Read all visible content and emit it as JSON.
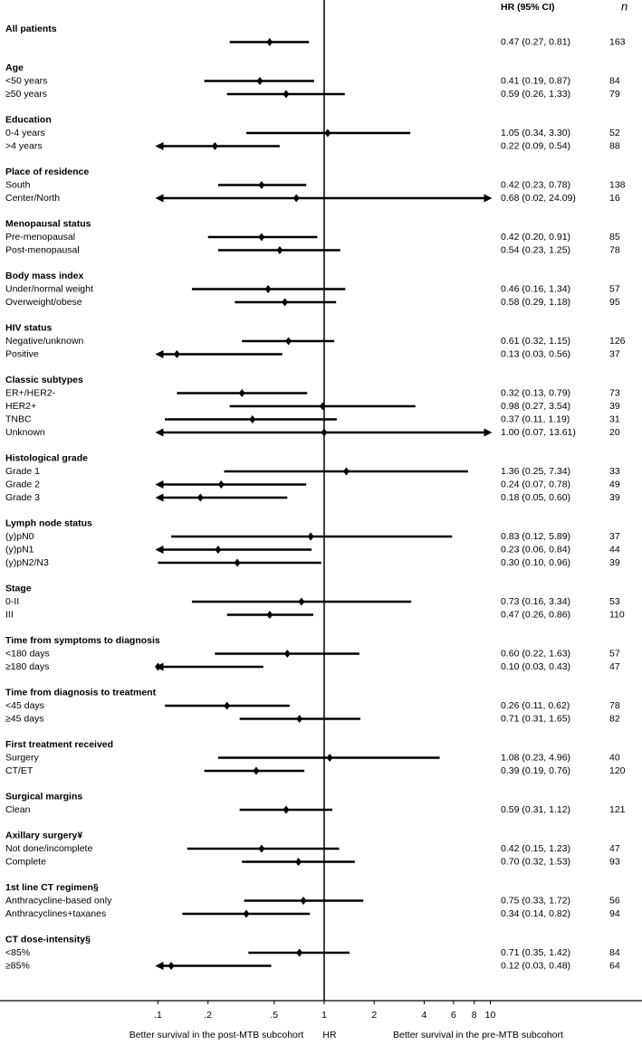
{
  "chart_data": {
    "type": "forest",
    "header_ci": "HR (95% CI)",
    "header_n": "n",
    "x_label_left": "Better survival in the post-MTB subcohort",
    "x_label_center": "HR",
    "x_label_right": "Better survival in the pre-MTB subcohort",
    "log_scale": true,
    "xlim": [
      0.1,
      10
    ],
    "xticks": [
      {
        "value": 0.1,
        "label": ".1"
      },
      {
        "value": 0.2,
        "label": ".2"
      },
      {
        "value": 0.5,
        "label": ".5"
      },
      1,
      2,
      4,
      6,
      8,
      10
    ],
    "reference": 1,
    "color": "#000000",
    "groups": [
      {
        "title": "All patients",
        "rows": [
          {
            "label": null,
            "hr": 0.47,
            "lower": 0.27,
            "upper": 0.81,
            "hr_label": "0.47 (0.27, 0.81)",
            "n": 163
          }
        ]
      },
      {
        "title": "Age",
        "rows": [
          {
            "label": "<50 years",
            "hr": 0.41,
            "lower": 0.19,
            "upper": 0.87,
            "hr_label": "0.41 (0.19, 0.87)",
            "n": 84
          },
          {
            "label": "≥50 years",
            "hr": 0.59,
            "lower": 0.26,
            "upper": 1.33,
            "hr_label": "0.59 (0.26, 1.33)",
            "n": 79
          }
        ]
      },
      {
        "title": "Education",
        "rows": [
          {
            "label": "0-4 years",
            "hr": 1.05,
            "lower": 0.34,
            "upper": 3.3,
            "hr_label": "1.05 (0.34, 3.30)",
            "n": 52
          },
          {
            "label": ">4 years",
            "hr": 0.22,
            "lower": 0.09,
            "upper": 0.54,
            "hr_label": "0.22 (0.09, 0.54)",
            "n": 88
          }
        ]
      },
      {
        "title": "Place of residence",
        "rows": [
          {
            "label": "South",
            "hr": 0.42,
            "lower": 0.23,
            "upper": 0.78,
            "hr_label": "0.42 (0.23, 0.78)",
            "n": 138
          },
          {
            "label": "Center/North",
            "hr": 0.68,
            "lower": 0.02,
            "upper": 24.09,
            "hr_label": "0.68 (0.02, 24.09)",
            "n": 16
          }
        ]
      },
      {
        "title": "Menopausal status",
        "rows": [
          {
            "label": "Pre-menopausal",
            "hr": 0.42,
            "lower": 0.2,
            "upper": 0.91,
            "hr_label": "0.42 (0.20, 0.91)",
            "n": 85
          },
          {
            "label": "Post-menopausal",
            "hr": 0.54,
            "lower": 0.23,
            "upper": 1.25,
            "hr_label": "0.54 (0.23, 1.25)",
            "n": 78
          }
        ]
      },
      {
        "title": "Body mass index",
        "rows": [
          {
            "label": "Under/normal weight",
            "hr": 0.46,
            "lower": 0.16,
            "upper": 1.34,
            "hr_label": "0.46 (0.16, 1.34)",
            "n": 57
          },
          {
            "label": "Overweight/obese",
            "hr": 0.58,
            "lower": 0.29,
            "upper": 1.18,
            "hr_label": "0.58 (0.29, 1.18)",
            "n": 95
          }
        ]
      },
      {
        "title": "HIV status",
        "rows": [
          {
            "label": "Negative/unknown",
            "hr": 0.61,
            "lower": 0.32,
            "upper": 1.15,
            "hr_label": "0.61 (0.32, 1.15)",
            "n": 126
          },
          {
            "label": "Positive",
            "hr": 0.13,
            "lower": 0.03,
            "upper": 0.56,
            "hr_label": "0.13 (0.03, 0.56)",
            "n": 37
          }
        ]
      },
      {
        "title": "Classic subtypes",
        "rows": [
          {
            "label": "ER+/HER2-",
            "hr": 0.32,
            "lower": 0.13,
            "upper": 0.79,
            "hr_label": "0.32 (0.13, 0.79)",
            "n": 73
          },
          {
            "label": "HER2+",
            "hr": 0.98,
            "lower": 0.27,
            "upper": 3.54,
            "hr_label": "0.98 (0.27, 3.54)",
            "n": 39
          },
          {
            "label": "TNBC",
            "hr": 0.37,
            "lower": 0.11,
            "upper": 1.19,
            "hr_label": "0.37 (0.11, 1.19)",
            "n": 31
          },
          {
            "label": "Unknown",
            "hr": 1.0,
            "lower": 0.07,
            "upper": 13.61,
            "hr_label": "1.00 (0.07, 13.61)",
            "n": 20
          }
        ]
      },
      {
        "title": "Histological grade",
        "rows": [
          {
            "label": "Grade 1",
            "hr": 1.36,
            "lower": 0.25,
            "upper": 7.34,
            "hr_label": "1.36 (0.25, 7.34)",
            "n": 33
          },
          {
            "label": "Grade 2",
            "hr": 0.24,
            "lower": 0.07,
            "upper": 0.78,
            "hr_label": "0.24 (0.07, 0.78)",
            "n": 49
          },
          {
            "label": "Grade 3",
            "hr": 0.18,
            "lower": 0.05,
            "upper": 0.6,
            "hr_label": "0.18 (0.05, 0.60)",
            "n": 39
          }
        ]
      },
      {
        "title": "Lymph node status",
        "rows": [
          {
            "label": "(y)pN0",
            "hr": 0.83,
            "lower": 0.12,
            "upper": 5.89,
            "hr_label": "0.83 (0.12, 5.89)",
            "n": 37
          },
          {
            "label": "(y)pN1",
            "hr": 0.23,
            "lower": 0.06,
            "upper": 0.84,
            "hr_label": "0.23 (0.06, 0.84)",
            "n": 44
          },
          {
            "label": "(y)pN2/N3",
            "hr": 0.3,
            "lower": 0.1,
            "upper": 0.96,
            "hr_label": "0.30 (0.10, 0.96)",
            "n": 39
          }
        ]
      },
      {
        "title": "Stage",
        "rows": [
          {
            "label": "0-II",
            "hr": 0.73,
            "lower": 0.16,
            "upper": 3.34,
            "hr_label": "0.73 (0.16, 3.34)",
            "n": 53
          },
          {
            "label": "III",
            "hr": 0.47,
            "lower": 0.26,
            "upper": 0.86,
            "hr_label": "0.47 (0.26, 0.86)",
            "n": 110
          }
        ]
      },
      {
        "title": "Time from symptoms to diagnosis",
        "rows": [
          {
            "label": "<180 days",
            "hr": 0.6,
            "lower": 0.22,
            "upper": 1.63,
            "hr_label": "0.60 (0.22, 1.63)",
            "n": 57
          },
          {
            "label": "≥180 days",
            "hr": 0.1,
            "lower": 0.03,
            "upper": 0.43,
            "hr_label": "0.10 (0.03, 0.43)",
            "n": 47
          }
        ]
      },
      {
        "title": "Time from diagnosis to treatment",
        "rows": [
          {
            "label": "<45 days",
            "hr": 0.26,
            "lower": 0.11,
            "upper": 0.62,
            "hr_label": "0.26 (0.11, 0.62)",
            "n": 78
          },
          {
            "label": "≥45 days",
            "hr": 0.71,
            "lower": 0.31,
            "upper": 1.65,
            "hr_label": "0.71 (0.31, 1.65)",
            "n": 82
          }
        ]
      },
      {
        "title": "First treatment received",
        "rows": [
          {
            "label": "Surgery",
            "hr": 1.08,
            "lower": 0.23,
            "upper": 4.96,
            "hr_label": "1.08 (0.23, 4.96)",
            "n": 40
          },
          {
            "label": "CT/ET",
            "hr": 0.39,
            "lower": 0.19,
            "upper": 0.76,
            "hr_label": "0.39 (0.19, 0.76)",
            "n": 120
          }
        ]
      },
      {
        "title": "Surgical margins",
        "rows": [
          {
            "label": "Clean",
            "hr": 0.59,
            "lower": 0.31,
            "upper": 1.12,
            "hr_label": "0.59 (0.31, 1.12)",
            "n": 121
          }
        ]
      },
      {
        "title": "Axillary surgery¥",
        "rows": [
          {
            "label": "Not done/incomplete",
            "hr": 0.42,
            "lower": 0.15,
            "upper": 1.23,
            "hr_label": "0.42 (0.15, 1.23)",
            "n": 47
          },
          {
            "label": "Complete",
            "hr": 0.7,
            "lower": 0.32,
            "upper": 1.53,
            "hr_label": "0.70 (0.32, 1.53)",
            "n": 93
          }
        ]
      },
      {
        "title": "1st line CT regimen§",
        "rows": [
          {
            "label": "Anthracycline-based only",
            "hr": 0.75,
            "lower": 0.33,
            "upper": 1.72,
            "hr_label": "0.75 (0.33, 1.72)",
            "n": 56
          },
          {
            "label": "Anthracyclines+taxanes",
            "hr": 0.34,
            "lower": 0.14,
            "upper": 0.82,
            "hr_label": "0.34 (0.14, 0.82)",
            "n": 94
          }
        ]
      },
      {
        "title": "CT dose-intensity§",
        "rows": [
          {
            "label": "<85%",
            "hr": 0.71,
            "lower": 0.35,
            "upper": 1.42,
            "hr_label": "0.71 (0.35, 1.42)",
            "n": 84
          },
          {
            "label": "≥85%",
            "hr": 0.12,
            "lower": 0.03,
            "upper": 0.48,
            "hr_label": "0.12 (0.03, 0.48)",
            "n": 64
          }
        ]
      }
    ]
  }
}
